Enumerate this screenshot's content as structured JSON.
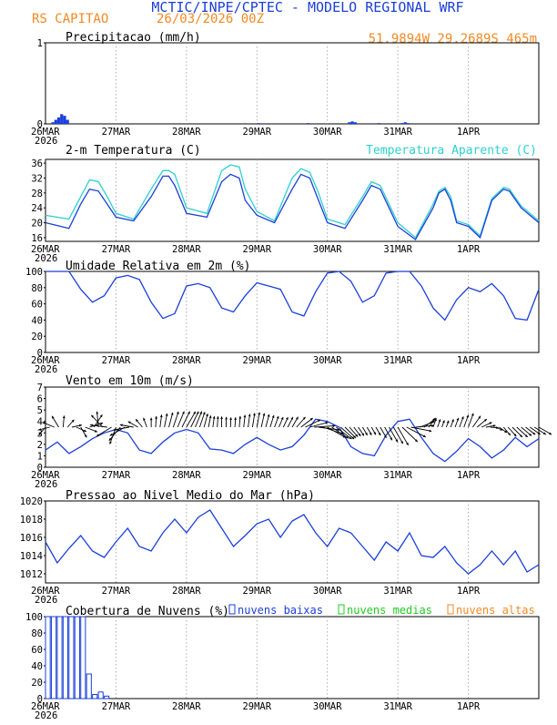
{
  "header": {
    "title": "MCTIC/INPE/CPTEC - MODELO REGIONAL WRF",
    "location": "RS CAPITAO",
    "run": "26/03/2026 00Z",
    "coords": "51.9894W 29.2689S 465m"
  },
  "colors": {
    "title": "#1b3fd8",
    "orange": "#f08a24",
    "cyan": "#2fcfcf",
    "blue": "#1b3fd8",
    "green": "#22cc22",
    "grid": "#999999"
  },
  "time_axis": {
    "labels": [
      "26MAR",
      "27MAR",
      "28MAR",
      "29MAR",
      "30MAR",
      "31MAR",
      "1APR"
    ],
    "year": "2026",
    "hours": 168
  },
  "chart_data": [
    {
      "type": "bar",
      "title": "Precipitacao (mm/h)",
      "ylim": [
        0,
        1
      ],
      "yticks": [
        "0",
        "1"
      ],
      "x_hours": [
        2,
        3,
        4,
        5,
        6,
        7,
        72,
        89,
        103,
        104,
        105,
        113,
        121,
        122,
        123
      ],
      "values": [
        0.02,
        0.05,
        0.08,
        0.12,
        0.1,
        0.05,
        0.01,
        0.01,
        0.02,
        0.03,
        0.02,
        0.01,
        0.01,
        0.02,
        0.01
      ]
    },
    {
      "type": "line",
      "title": "2-m Temperatura (C)",
      "legend": "Temperatura Aparente (C)",
      "ylim": [
        15,
        37
      ],
      "yticks": [
        "16",
        "20",
        "24",
        "28",
        "32",
        "36"
      ],
      "series": [
        {
          "name": "temperature",
          "x_hours": [
            0,
            8,
            12,
            15,
            18,
            21,
            24,
            30,
            36,
            40,
            42,
            44,
            48,
            55,
            60,
            63,
            66,
            68,
            72,
            78,
            84,
            87,
            90,
            93,
            96,
            102,
            108,
            111,
            114,
            117,
            120,
            126,
            132,
            134,
            136,
            138,
            140,
            144,
            148,
            152,
            156,
            158,
            162,
            165,
            168
          ],
          "values": [
            20,
            18.5,
            25,
            29,
            28.5,
            25,
            21.5,
            20.5,
            27,
            32.5,
            32.5,
            30,
            22.5,
            21.5,
            31,
            33,
            32,
            26,
            22,
            20,
            29,
            33,
            32,
            26,
            20,
            18.5,
            26,
            30,
            29,
            24,
            19,
            15.5,
            24,
            28,
            29,
            26,
            20,
            19,
            16,
            26,
            29,
            28.5,
            24,
            22,
            20
          ]
        },
        {
          "name": "apparent",
          "x_hours": [
            0,
            8,
            12,
            15,
            18,
            21,
            24,
            30,
            36,
            40,
            42,
            44,
            48,
            55,
            60,
            63,
            66,
            68,
            72,
            78,
            84,
            87,
            90,
            93,
            96,
            102,
            108,
            111,
            114,
            117,
            120,
            126,
            132,
            134,
            136,
            138,
            140,
            144,
            148,
            152,
            156,
            158,
            162,
            165,
            168
          ],
          "values": [
            22,
            21,
            27,
            31.5,
            31,
            27,
            22.5,
            21,
            29,
            34,
            34,
            33,
            24,
            22.5,
            34,
            35.5,
            35,
            29,
            23,
            20.5,
            32,
            34.5,
            33.5,
            28,
            21,
            19.5,
            27,
            31,
            30,
            25,
            20,
            16,
            25,
            28.5,
            29.5,
            27,
            20.5,
            19.5,
            16.5,
            26.5,
            29.5,
            29,
            24.5,
            22.5,
            20.5
          ]
        }
      ]
    },
    {
      "type": "line",
      "title": "Umidade Relativa em 2m (%)",
      "ylim": [
        0,
        100
      ],
      "yticks": [
        "0",
        "20",
        "40",
        "60",
        "80",
        "100"
      ],
      "series": [
        {
          "name": "rh",
          "x_hours": [
            0,
            4,
            8,
            12,
            16,
            20,
            24,
            28,
            32,
            36,
            40,
            44,
            48,
            52,
            56,
            60,
            64,
            68,
            72,
            76,
            80,
            84,
            88,
            92,
            96,
            100,
            104,
            108,
            112,
            116,
            120,
            124,
            128,
            132,
            136,
            140,
            144,
            148,
            152,
            156,
            160,
            164,
            168
          ],
          "values": [
            100,
            100,
            100,
            78,
            62,
            70,
            92,
            95,
            90,
            62,
            42,
            48,
            82,
            85,
            80,
            55,
            50,
            70,
            86,
            82,
            78,
            50,
            45,
            75,
            98,
            100,
            88,
            62,
            70,
            98,
            100,
            100,
            82,
            55,
            40,
            65,
            80,
            75,
            85,
            70,
            42,
            40,
            78
          ]
        }
      ]
    },
    {
      "type": "line",
      "title": "Vento em 10m (m/s)",
      "ylim": [
        0,
        7
      ],
      "yticks": [
        "0",
        "1",
        "2",
        "3",
        "4",
        "5",
        "6",
        "7"
      ],
      "series": [
        {
          "name": "wind_speed",
          "x_hours": [
            0,
            4,
            8,
            12,
            16,
            20,
            24,
            28,
            32,
            36,
            40,
            44,
            48,
            52,
            56,
            60,
            64,
            68,
            72,
            76,
            80,
            84,
            88,
            92,
            96,
            100,
            104,
            108,
            112,
            116,
            120,
            124,
            128,
            132,
            136,
            140,
            144,
            148,
            152,
            156,
            160,
            164,
            168
          ],
          "values": [
            1.5,
            2.2,
            1.2,
            1.8,
            2.5,
            3.0,
            3.3,
            3.0,
            1.5,
            1.2,
            2.2,
            3.0,
            3.3,
            3.0,
            1.6,
            1.5,
            1.2,
            2.0,
            2.6,
            2.0,
            1.5,
            1.8,
            2.8,
            4.2,
            4.0,
            3.5,
            1.8,
            1.2,
            1.0,
            2.8,
            4.0,
            4.2,
            2.6,
            1.2,
            0.5,
            1.4,
            2.5,
            1.8,
            0.8,
            1.5,
            2.6,
            1.8,
            2.5
          ]
        },
        {
          "name": "wind_direction_deg",
          "x_hours": [
            0,
            12,
            24,
            36,
            48,
            60,
            72,
            84,
            96,
            108,
            120,
            132,
            144,
            156,
            168
          ],
          "values": [
            40,
            330,
            20,
            180,
            210,
            180,
            190,
            210,
            300,
            330,
            330,
            200,
            200,
            320,
            300
          ]
        }
      ]
    },
    {
      "type": "line",
      "title": "Pressao ao Nivel Medio do Mar (hPa)",
      "ylim": [
        1011,
        1020
      ],
      "yticks": [
        "1012",
        "1014",
        "1016",
        "1018",
        "1020"
      ],
      "series": [
        {
          "name": "mslp",
          "x_hours": [
            0,
            4,
            8,
            12,
            16,
            20,
            24,
            28,
            32,
            36,
            40,
            44,
            48,
            52,
            56,
            60,
            64,
            68,
            72,
            76,
            80,
            84,
            88,
            92,
            96,
            100,
            104,
            108,
            112,
            116,
            120,
            124,
            128,
            132,
            136,
            140,
            144,
            148,
            152,
            156,
            160,
            164,
            168
          ],
          "values": [
            1015.5,
            1013.2,
            1014.8,
            1016.2,
            1014.5,
            1013.8,
            1015.5,
            1017.0,
            1015.0,
            1014.5,
            1016.5,
            1018.0,
            1016.5,
            1018.2,
            1019.0,
            1017.0,
            1015.0,
            1016.2,
            1017.5,
            1018.0,
            1016.0,
            1017.8,
            1018.5,
            1016.5,
            1015.0,
            1017.0,
            1016.5,
            1015.0,
            1013.5,
            1015.5,
            1014.5,
            1016.5,
            1014.0,
            1013.8,
            1015.0,
            1013.2,
            1012.0,
            1013.0,
            1014.5,
            1013.0,
            1014.5,
            1012.2,
            1013.0
          ]
        }
      ]
    },
    {
      "type": "bar",
      "title": "Cobertura de Nuvens (%)",
      "legend": [
        "nuvens baixas",
        "nuvens medias",
        "nuvens altas"
      ],
      "ylim": [
        0,
        100
      ],
      "yticks": [
        "0",
        "20",
        "40",
        "60",
        "80",
        "100"
      ],
      "series": [
        {
          "name": "nuvens baixas",
          "x_hours": [
            0,
            2,
            4,
            6,
            8,
            10,
            12,
            14,
            16,
            18,
            20,
            22,
            24,
            26,
            28,
            30,
            32,
            34,
            36,
            38,
            40,
            42,
            44,
            46,
            48,
            50,
            52,
            54,
            56,
            58,
            60,
            62,
            64,
            66,
            68,
            70,
            72,
            74,
            76,
            78,
            80,
            82,
            84,
            86,
            88,
            90,
            92,
            94,
            96,
            98,
            100,
            102,
            104,
            106,
            108,
            110,
            112,
            114,
            116,
            118,
            120,
            122,
            124,
            126,
            128,
            130,
            132,
            134,
            136,
            138,
            140,
            142,
            144,
            146,
            148,
            150,
            152,
            154,
            156,
            158,
            160,
            162,
            164,
            166
          ],
          "values": [
            100,
            100,
            100,
            100,
            100,
            100,
            100,
            30,
            5,
            8,
            3,
            0,
            0,
            0,
            0,
            0,
            0,
            0,
            0,
            0,
            0,
            0,
            0,
            0,
            0,
            0,
            0,
            0,
            0,
            0,
            0,
            0,
            0,
            0,
            0,
            0,
            0,
            0,
            0,
            0,
            0,
            0,
            0,
            0,
            0,
            0,
            0,
            0,
            0,
            0,
            0,
            0,
            0,
            0,
            0,
            0,
            0,
            0,
            0,
            0,
            0,
            0,
            0,
            0,
            0,
            0,
            0,
            0,
            0,
            0,
            0,
            0,
            0,
            0,
            0,
            0,
            0,
            0,
            0,
            0,
            0,
            0,
            0,
            0
          ]
        },
        {
          "name": "nuvens medias",
          "x_hours": [
            0,
            2,
            4,
            6,
            8,
            10,
            12,
            14,
            16,
            18,
            20,
            22,
            24,
            26,
            28,
            30,
            32,
            34,
            36,
            38,
            40,
            42,
            44,
            46,
            48,
            50,
            52,
            54,
            56,
            58,
            60,
            62,
            64,
            66,
            68,
            70,
            72,
            74,
            76,
            78,
            80,
            82,
            84,
            86,
            88,
            90,
            92,
            94,
            96,
            98,
            100,
            102,
            104,
            106,
            108,
            110,
            112,
            114,
            116,
            118,
            120,
            122,
            124,
            126,
            128,
            130,
            132,
            134,
            136,
            138,
            140,
            142,
            144,
            146,
            148,
            150,
            152,
            154,
            156,
            158,
            160,
            162,
            164,
            166
          ],
          "values": [
            0,
            0,
            0,
            0,
            0,
            0,
            0,
            0,
            0,
            0,
            0,
            0,
            0,
            0,
            0,
            0,
            0,
            0,
            0,
            0,
            0,
            0,
            0,
            0,
            0,
            0,
            0,
            0,
            0,
            0,
            0,
            0,
            0,
            0,
            0,
            0,
            0,
            0,
            0,
            0,
            0,
            0,
            0,
            0,
            0,
            0,
            0,
            0,
            0,
            0,
            0,
            0,
            0,
            0,
            0,
            0,
            0,
            0,
            0,
            0,
            0,
            0,
            0,
            0,
            0,
            0,
            0,
            0,
            0,
            0,
            0,
            0,
            0,
            0,
            0,
            0,
            0,
            0,
            0,
            0,
            0,
            0,
            0,
            0
          ]
        },
        {
          "name": "nuvens altas",
          "x_hours": [
            0,
            2,
            4,
            6,
            8,
            10,
            12,
            14,
            16,
            18,
            20,
            22,
            24,
            26,
            28,
            30,
            32,
            34,
            36,
            38,
            40,
            42,
            44,
            46,
            48,
            50,
            52,
            54,
            56,
            58,
            60,
            62,
            64,
            66,
            68,
            70,
            72,
            74,
            76,
            78,
            80,
            82,
            84,
            86,
            88,
            90,
            92,
            94,
            96,
            98,
            100,
            102,
            104,
            106,
            108,
            110,
            112,
            114,
            116,
            118,
            120,
            122,
            124,
            126,
            128,
            130,
            132,
            134,
            136,
            138,
            140,
            142,
            144,
            146,
            148,
            150,
            152,
            154,
            156,
            158,
            160,
            162,
            164,
            166
          ],
          "values": [
            0,
            0,
            0,
            0,
            0,
            0,
            0,
            0,
            0,
            0,
            0,
            0,
            0,
            0,
            0,
            0,
            0,
            0,
            0,
            0,
            0,
            0,
            0,
            0,
            0,
            0,
            0,
            0,
            0,
            0,
            0,
            0,
            0,
            0,
            0,
            0,
            0,
            0,
            0,
            0,
            0,
            0,
            0,
            0,
            0,
            0,
            0,
            0,
            0,
            0,
            0,
            0,
            0,
            0,
            0,
            0,
            0,
            0,
            0,
            0,
            0,
            0,
            0,
            0,
            0,
            0,
            0,
            0,
            0,
            0,
            0,
            0,
            0,
            0,
            0,
            0,
            0,
            0,
            0,
            0,
            0,
            0,
            0,
            0
          ]
        }
      ]
    }
  ]
}
